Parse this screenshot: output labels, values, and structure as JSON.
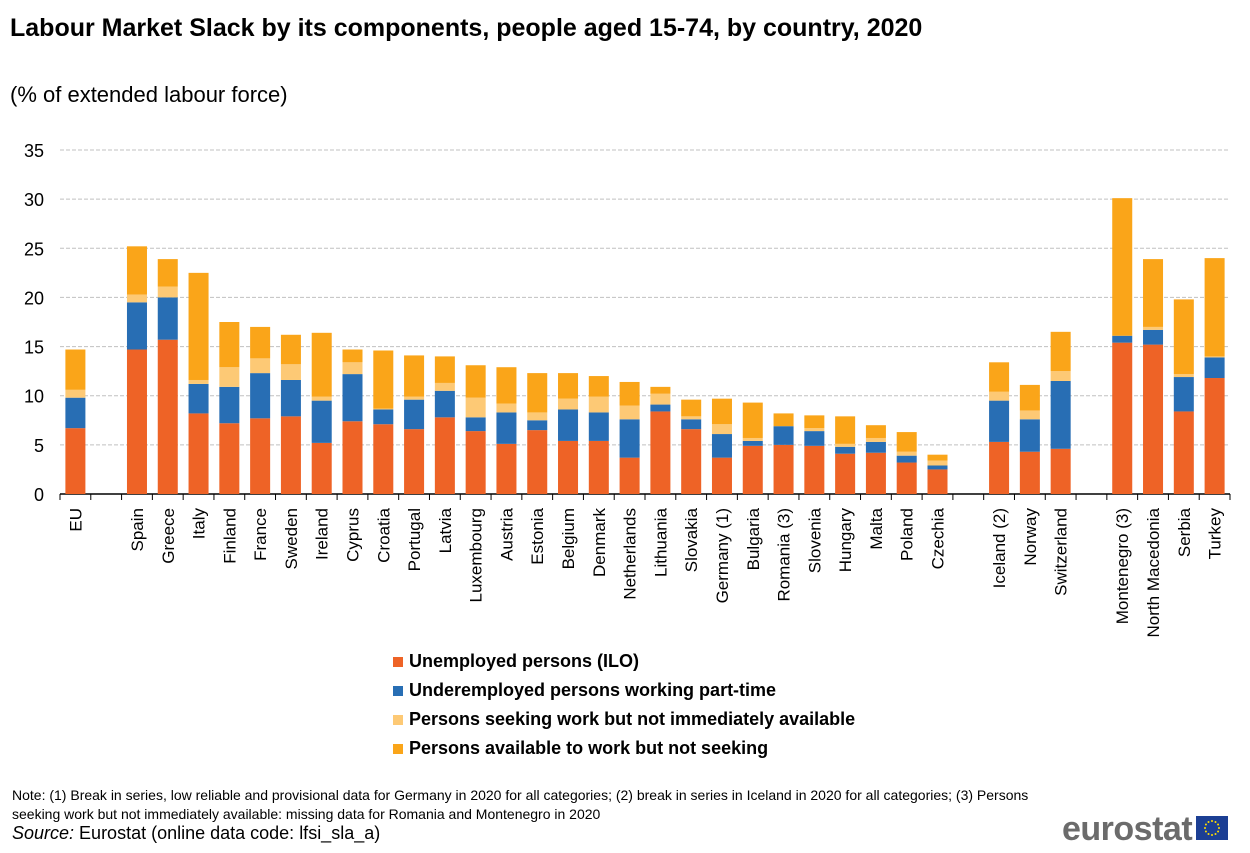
{
  "chart_data": {
    "type": "bar",
    "stacked": true,
    "title": "Labour Market Slack by its components, people aged 15-74, by country, 2020",
    "subtitle": "(% of extended labour force)",
    "xlabel": "",
    "ylabel": "",
    "ylim": [
      0,
      35
    ],
    "yticks": [
      0,
      5,
      10,
      15,
      20,
      25,
      30,
      35
    ],
    "grid": true,
    "legend_position": "bottom",
    "categories": [
      "EU",
      "",
      "Spain",
      "Greece",
      "Italy",
      "Finland",
      "France",
      "Sweden",
      "Ireland",
      "Cyprus",
      "Croatia",
      "Portugal",
      "Latvia",
      "Luxembourg",
      "Austria",
      "Estonia",
      "Belgium",
      "Denmark",
      "Netherlands",
      "Lithuania",
      "Slovakia",
      "Germany (1)",
      "Bulgaria",
      "Romania (3)",
      "Slovenia",
      "Hungary",
      "Malta",
      "Poland",
      "Czechia",
      "",
      "Iceland (2)",
      "Norway",
      "Switzerland",
      "",
      "Montenegro (3)",
      "North Macedonia",
      "Serbia",
      "Turkey"
    ],
    "series": [
      {
        "name": "Unemployed persons (ILO)",
        "color": "#ee6326",
        "values": [
          6.7,
          null,
          14.7,
          15.7,
          8.2,
          7.2,
          7.7,
          7.9,
          5.2,
          7.4,
          7.1,
          6.6,
          7.8,
          6.4,
          5.1,
          6.5,
          5.4,
          5.4,
          3.7,
          8.4,
          6.6,
          3.7,
          4.9,
          5.0,
          4.9,
          4.1,
          4.2,
          3.2,
          2.5,
          null,
          5.3,
          4.3,
          4.6,
          null,
          15.4,
          15.2,
          8.4,
          11.8
        ]
      },
      {
        "name": "Underemployed persons working part-time",
        "color": "#286eb4",
        "values": [
          3.1,
          null,
          4.8,
          4.3,
          3.0,
          3.7,
          4.6,
          3.7,
          4.3,
          4.8,
          1.5,
          3.0,
          2.7,
          1.4,
          3.2,
          1.0,
          3.2,
          2.9,
          3.9,
          0.7,
          1.0,
          2.4,
          0.5,
          1.9,
          1.5,
          0.7,
          1.1,
          0.7,
          0.4,
          null,
          4.2,
          3.3,
          6.9,
          null,
          0.7,
          1.5,
          3.5,
          2.1
        ]
      },
      {
        "name": "Persons seeking work but not immediately available",
        "color": "#fdc975",
        "values": [
          0.8,
          null,
          0.8,
          1.1,
          0.4,
          2.0,
          1.5,
          1.6,
          0.4,
          1.2,
          0.1,
          0.3,
          0.8,
          2.0,
          0.9,
          0.8,
          1.1,
          1.6,
          1.4,
          1.1,
          0.3,
          1.0,
          0.3,
          0.0,
          0.3,
          0.3,
          0.4,
          0.4,
          0.5,
          null,
          0.9,
          0.9,
          1.0,
          null,
          0.0,
          0.3,
          0.3,
          0.1
        ]
      },
      {
        "name": "Persons available to work but not seeking",
        "color": "#faa519",
        "values": [
          4.1,
          null,
          4.9,
          2.8,
          10.9,
          4.6,
          3.2,
          3.0,
          6.5,
          1.3,
          5.9,
          4.2,
          2.7,
          3.3,
          3.7,
          4.0,
          2.6,
          2.1,
          2.4,
          0.7,
          1.7,
          2.6,
          3.6,
          1.3,
          1.3,
          2.8,
          1.3,
          2.0,
          0.6,
          null,
          3.0,
          2.6,
          4.0,
          null,
          14.0,
          6.9,
          7.6,
          10.0
        ]
      }
    ]
  },
  "footer": {
    "note": "Note: (1) Break in series, low reliable and provisional data for Germany in 2020 for all categories; (2) break in series in Iceland in 2020 for all categories; (3) Persons seeking work but not immediately available: missing data for Romania and Montenegro in 2020",
    "source_label": "Source:",
    "source_text": " Eurostat (online data code: lfsi_sla_a)",
    "logo": "eurostat"
  }
}
